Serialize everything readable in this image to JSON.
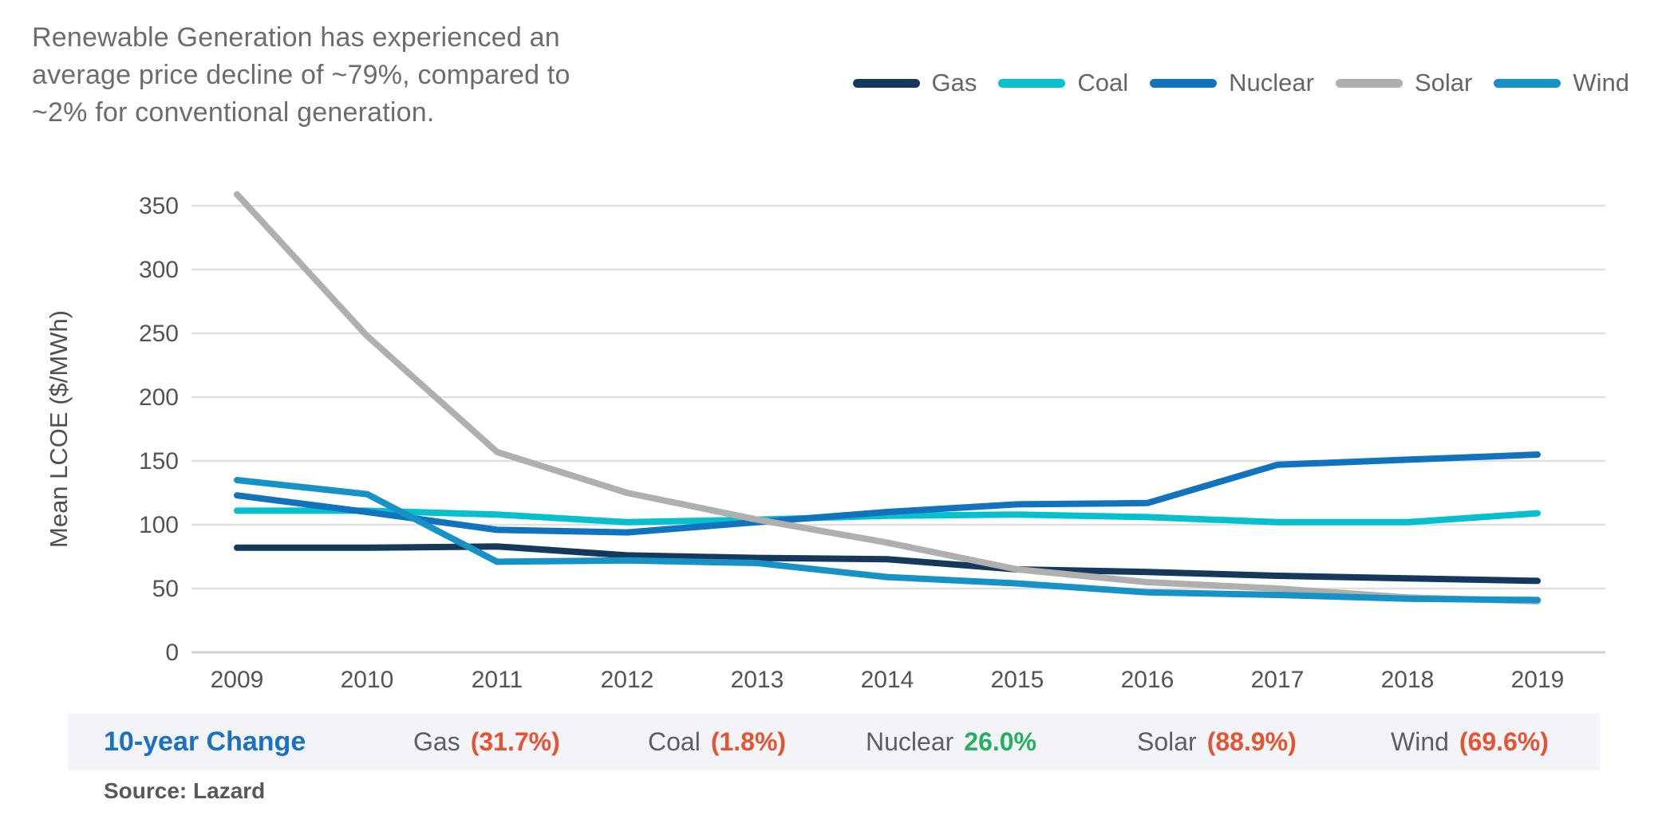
{
  "title": {
    "lines": [
      "Renewable Generation has experienced an",
      "average price decline of ~79%, compared to",
      "~2% for conventional generation."
    ]
  },
  "chart_data": {
    "type": "line",
    "title": "",
    "xlabel": "",
    "ylabel": "Mean LCOE ($/MWh)",
    "ylim": [
      0,
      350
    ],
    "ytick_step": 50,
    "yticks": [
      "0",
      "50",
      "100",
      "150",
      "200",
      "250",
      "300",
      "350"
    ],
    "grid": "horizontal",
    "legend_position": "top-right",
    "categories": [
      "2009",
      "2010",
      "2011",
      "2012",
      "2013",
      "2014",
      "2015",
      "2016",
      "2017",
      "2018",
      "2019"
    ],
    "series": [
      {
        "name": "Gas",
        "color": "#14395d",
        "values": [
          82,
          82,
          83,
          76,
          74,
          73,
          65,
          63,
          60,
          58,
          56
        ]
      },
      {
        "name": "Coal",
        "color": "#07c0cd",
        "values": [
          111,
          111,
          108,
          102,
          104,
          107,
          108,
          106,
          102,
          102,
          109
        ]
      },
      {
        "name": "Nuclear",
        "color": "#1173bd",
        "values": [
          123,
          110,
          96,
          94,
          102,
          110,
          116,
          117,
          147,
          151,
          155
        ]
      },
      {
        "name": "Solar",
        "color": "#afafaf",
        "values": [
          359,
          248,
          157,
          125,
          104,
          86,
          65,
          55,
          50,
          43,
          40
        ]
      },
      {
        "name": "Wind",
        "color": "#1792c6",
        "values": [
          135,
          124,
          71,
          72,
          70,
          59,
          54,
          47,
          45,
          42,
          41
        ]
      }
    ]
  },
  "change_row": {
    "heading": "10-year Change",
    "entries": [
      {
        "label": "Gas",
        "value": "(31.7%)",
        "positive": false
      },
      {
        "label": "Coal",
        "value": "(1.8%)",
        "positive": false
      },
      {
        "label": "Nuclear",
        "value": "26.0%",
        "positive": true
      },
      {
        "label": "Solar",
        "value": "(88.9%)",
        "positive": false
      },
      {
        "label": "Wind",
        "value": "(69.6%)",
        "positive": false
      }
    ]
  },
  "source": "Source: Lazard",
  "theme": {
    "positive_color": "#27ae60",
    "negative_color": "#e65332",
    "heading_color": "#1a70c2",
    "grid_color": "#e0e0e0",
    "zero_line_color": "#d2d2d2",
    "tick_color": "#545454",
    "axis_title_color": "#4f4f4f"
  }
}
